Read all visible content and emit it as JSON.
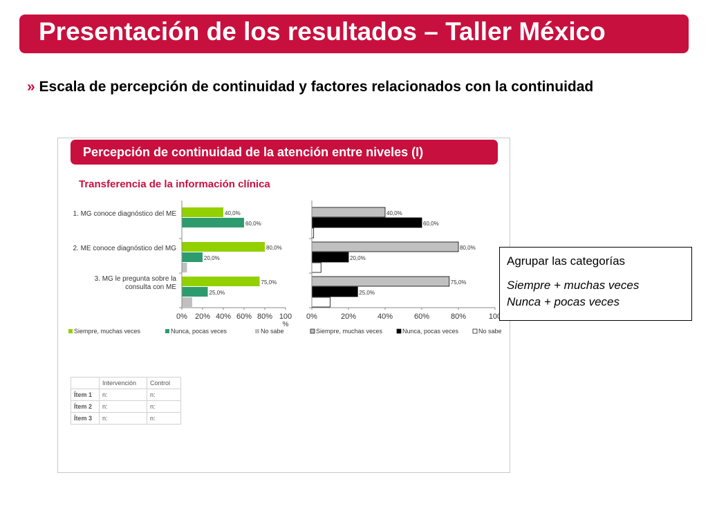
{
  "header": {
    "title": "Presentación de los resultados – Taller México"
  },
  "section": {
    "bullet": "»",
    "heading": "Escala de percepción de continuidad y factores relacionados con la continuidad"
  },
  "panel": {
    "title": "Percepción de continuidad de la atención entre niveles  (I)",
    "subtitle": "Transferencia de la información clínica"
  },
  "chart_data": [
    {
      "type": "bar",
      "orientation": "horizontal",
      "categories": [
        "1. MG conoce diagnóstico del ME",
        "2. ME conoce diagnóstico del MG",
        "3. MG le pregunta sobre la consulta con ME"
      ],
      "series": [
        {
          "name": "Siempre, muchas veces",
          "values": [
            40,
            80,
            75
          ],
          "labels": [
            "40,0%",
            "80,0%",
            "75,0%"
          ],
          "color": "#92d000"
        },
        {
          "name": "Nunca, pocas veces",
          "values": [
            60,
            20,
            25
          ],
          "labels": [
            "60,0%",
            "20,0%",
            "25,0%"
          ],
          "color": "#2e9b6e"
        },
        {
          "name": "No sabe",
          "values": [
            0,
            5,
            10
          ],
          "labels": [
            "",
            "",
            ""
          ],
          "color": "#c0c0c0"
        }
      ],
      "xticks": [
        "0%",
        "20%",
        "40%",
        "60%",
        "80%",
        "100"
      ],
      "xlabel": "%",
      "xlim": [
        0,
        100
      ],
      "legend": "bottom"
    },
    {
      "type": "bar",
      "orientation": "horizontal",
      "categories": [
        "1. MG conoce diagnóstico del ME",
        "2. ME conoce diagnóstico del MG",
        "3. MG le pregunta sobre la consulta con ME"
      ],
      "series": [
        {
          "name": "Siempre, muchas veces",
          "values": [
            40,
            80,
            75
          ],
          "labels": [
            "40,0%",
            "80,0%",
            "75,0%"
          ],
          "color": "#c0c0c0"
        },
        {
          "name": "Nunca, pocas veces",
          "values": [
            60,
            20,
            25
          ],
          "labels": [
            "60,0%",
            "20,0%",
            "25,0%"
          ],
          "color": "#000000"
        },
        {
          "name": "No sabe",
          "values": [
            1,
            5,
            10
          ],
          "labels": [
            "",
            "",
            ""
          ],
          "color": "#ffffff"
        }
      ],
      "xticks": [
        "0%",
        "20%",
        "40%",
        "60%",
        "80%",
        "100"
      ],
      "xlim": [
        0,
        100
      ],
      "legend": "bottom"
    }
  ],
  "mini_table": {
    "headers": [
      "",
      "Intervención",
      "Control"
    ],
    "rows": [
      [
        "Ítem 1",
        "n:",
        "n:"
      ],
      [
        "Ítem 2",
        "n:",
        "n:"
      ],
      [
        "Ítem 3",
        "n:",
        "n:"
      ]
    ]
  },
  "note": {
    "line1": "Agrupar las categorías",
    "line2": "Siempre + muchas veces",
    "line3": "Nunca + pocas veces"
  }
}
